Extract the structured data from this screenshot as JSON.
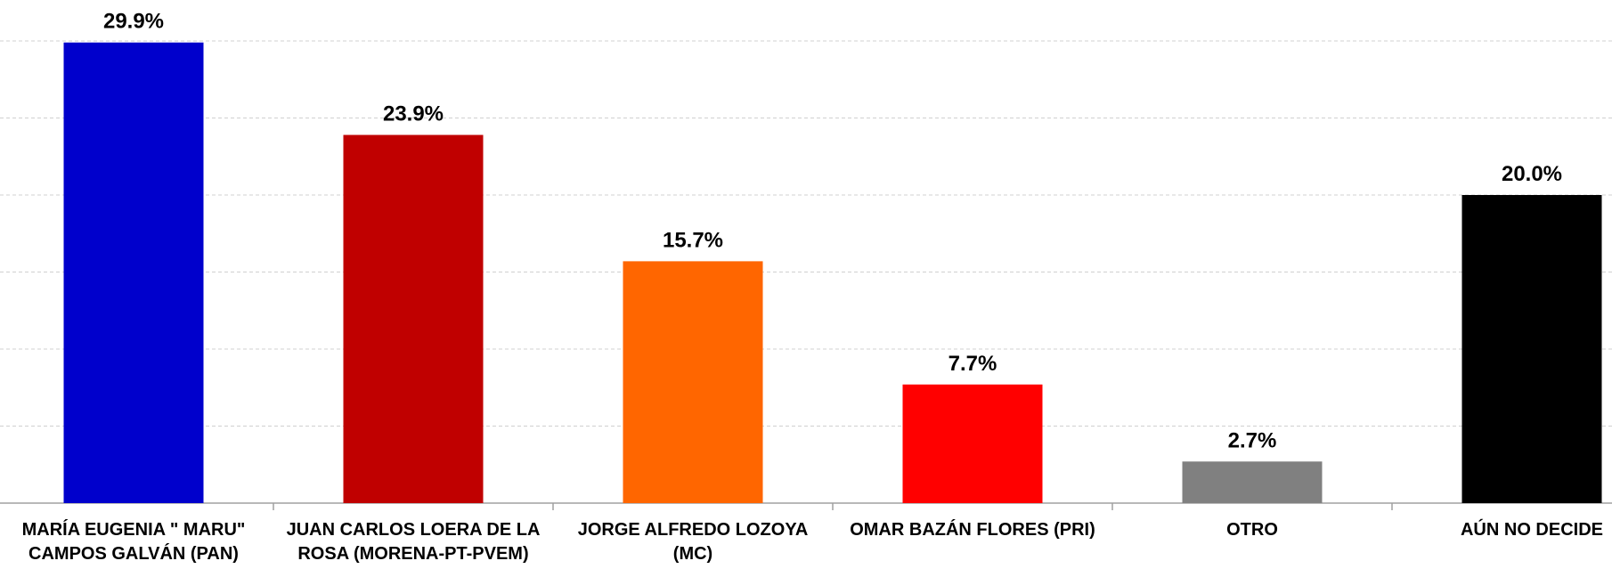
{
  "chart_data": {
    "type": "bar",
    "categories": [
      "MARÍA EUGENIA \" MARU\" CAMPOS GALVÁN (PAN)",
      "JUAN CARLOS LOERA DE LA ROSA (MORENA-PT-PVEM)",
      "JORGE ALFREDO LOZOYA (MC)",
      "OMAR BAZÁN FLORES (PRI)",
      "OTRO",
      "AÚN NO DECIDE"
    ],
    "values": [
      29.9,
      23.9,
      15.7,
      7.7,
      2.7,
      20.0
    ],
    "value_labels": [
      "29.9%",
      "23.9%",
      "15.7%",
      "7.7%",
      "2.7%",
      "20.0%"
    ],
    "colors": [
      "#0000cc",
      "#c00000",
      "#ff6600",
      "#ff0000",
      "#808080",
      "#000000"
    ],
    "ylim": [
      0,
      30
    ],
    "yticks": [
      0,
      5,
      10,
      15,
      20,
      25,
      30
    ],
    "grid": true
  }
}
